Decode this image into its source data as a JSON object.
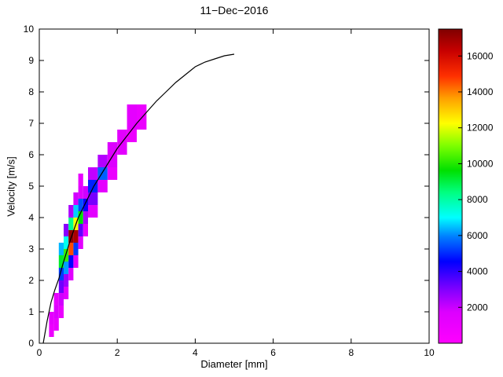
{
  "title": "11−Dec−2016",
  "chart_data": {
    "type": "heatmap",
    "title": "11−Dec−2016",
    "xlabel": "Diameter [mm]",
    "ylabel": "Velocity [m/s]",
    "xlim": [
      0,
      10
    ],
    "ylim": [
      0,
      10
    ],
    "xticks": [
      0,
      2,
      4,
      6,
      8,
      10
    ],
    "yticks": [
      0,
      1,
      2,
      3,
      4,
      5,
      6,
      7,
      8,
      9,
      10
    ],
    "grid": false,
    "background_color": "#ffffff",
    "axis_color": "#000000",
    "line_color": "#000000",
    "colorbar": {
      "min": 0,
      "max": 17500,
      "ticks": [
        2000,
        4000,
        6000,
        8000,
        10000,
        12000,
        14000,
        16000
      ],
      "position": "right"
    },
    "colormap": [
      [
        0.0,
        "#ff00ff"
      ],
      [
        0.1,
        "#dc00ff"
      ],
      [
        0.17,
        "#8200ff"
      ],
      [
        0.26,
        "#0000ff"
      ],
      [
        0.34,
        "#0080ff"
      ],
      [
        0.4,
        "#00ffff"
      ],
      [
        0.48,
        "#00ff80"
      ],
      [
        0.55,
        "#00e000"
      ],
      [
        0.63,
        "#80ff00"
      ],
      [
        0.7,
        "#ffff00"
      ],
      [
        0.78,
        "#ffa000"
      ],
      [
        0.85,
        "#ff3000"
      ],
      [
        0.93,
        "#c80000"
      ],
      [
        1.0,
        "#7f0000"
      ]
    ],
    "cells": [
      [
        0.25,
        0.375,
        0.2,
        0.6,
        900
      ],
      [
        0.25,
        0.375,
        0.6,
        1.0,
        1300
      ],
      [
        0.375,
        0.5,
        0.4,
        0.8,
        1100
      ],
      [
        0.375,
        0.5,
        0.8,
        1.2,
        1700
      ],
      [
        0.375,
        0.5,
        1.2,
        1.6,
        1200
      ],
      [
        0.5,
        0.625,
        0.8,
        1.2,
        1000
      ],
      [
        0.5,
        0.625,
        1.2,
        1.6,
        1900
      ],
      [
        0.5,
        0.625,
        1.6,
        2.0,
        3200
      ],
      [
        0.5,
        0.625,
        2.0,
        2.4,
        5200
      ],
      [
        0.5,
        0.625,
        2.4,
        2.8,
        9200
      ],
      [
        0.5,
        0.625,
        2.8,
        3.2,
        6400
      ],
      [
        0.625,
        0.75,
        1.4,
        1.8,
        1400
      ],
      [
        0.625,
        0.75,
        1.8,
        2.2,
        2600
      ],
      [
        0.625,
        0.75,
        2.2,
        2.6,
        6200
      ],
      [
        0.625,
        0.75,
        2.6,
        3.0,
        10200
      ],
      [
        0.625,
        0.75,
        3.0,
        3.4,
        7200
      ],
      [
        0.625,
        0.75,
        3.4,
        3.8,
        2900
      ],
      [
        0.75,
        0.875,
        2.0,
        2.4,
        1500
      ],
      [
        0.75,
        0.875,
        2.4,
        2.8,
        4600
      ],
      [
        0.75,
        0.875,
        2.8,
        3.2,
        14600
      ],
      [
        0.75,
        0.875,
        3.2,
        3.6,
        17200
      ],
      [
        0.75,
        0.875,
        3.6,
        4.0,
        8200
      ],
      [
        0.75,
        0.875,
        4.0,
        4.4,
        2400
      ],
      [
        0.875,
        1.0,
        2.4,
        2.8,
        1300
      ],
      [
        0.875,
        1.0,
        2.8,
        3.2,
        5200
      ],
      [
        0.875,
        1.0,
        3.2,
        3.6,
        16800
      ],
      [
        0.875,
        1.0,
        3.6,
        4.0,
        12200
      ],
      [
        0.875,
        1.0,
        4.0,
        4.4,
        6600
      ],
      [
        0.875,
        1.0,
        4.4,
        4.8,
        1900
      ],
      [
        1.0,
        1.125,
        3.0,
        3.4,
        1400
      ],
      [
        1.0,
        1.125,
        3.4,
        3.8,
        3400
      ],
      [
        1.0,
        1.125,
        3.8,
        4.2,
        9600
      ],
      [
        1.0,
        1.125,
        4.2,
        4.6,
        5400
      ],
      [
        1.0,
        1.125,
        4.6,
        5.0,
        1600
      ],
      [
        1.0,
        1.125,
        5.0,
        5.4,
        1100
      ],
      [
        1.125,
        1.25,
        3.4,
        3.8,
        1000
      ],
      [
        1.125,
        1.25,
        3.8,
        4.2,
        2400
      ],
      [
        1.125,
        1.25,
        4.2,
        4.6,
        4400
      ],
      [
        1.125,
        1.25,
        4.6,
        5.0,
        1900
      ],
      [
        1.25,
        1.5,
        4.0,
        4.4,
        1400
      ],
      [
        1.25,
        1.5,
        4.4,
        4.8,
        3100
      ],
      [
        1.25,
        1.5,
        4.8,
        5.2,
        4900
      ],
      [
        1.25,
        1.5,
        5.2,
        5.6,
        2100
      ],
      [
        1.5,
        1.75,
        4.8,
        5.2,
        1300
      ],
      [
        1.5,
        1.75,
        5.2,
        5.6,
        5600
      ],
      [
        1.5,
        1.75,
        5.6,
        6.0,
        2300
      ],
      [
        1.75,
        2.0,
        5.2,
        5.6,
        1000
      ],
      [
        1.75,
        2.0,
        5.6,
        6.4,
        1700
      ],
      [
        2.0,
        2.25,
        6.0,
        6.8,
        1400
      ],
      [
        2.25,
        2.5,
        6.4,
        6.8,
        900
      ],
      [
        2.25,
        2.5,
        6.8,
        7.6,
        1300
      ],
      [
        2.5,
        2.75,
        6.8,
        7.6,
        1000
      ]
    ],
    "line": {
      "name": "terminal-velocity-curve",
      "points": [
        [
          0.1,
          0.0
        ],
        [
          0.2,
          0.7
        ],
        [
          0.3,
          1.3
        ],
        [
          0.4,
          1.7
        ],
        [
          0.5,
          2.05
        ],
        [
          0.6,
          2.5
        ],
        [
          0.7,
          2.9
        ],
        [
          0.8,
          3.3
        ],
        [
          0.9,
          3.65
        ],
        [
          1.0,
          4.0
        ],
        [
          1.2,
          4.5
        ],
        [
          1.4,
          5.0
        ],
        [
          1.6,
          5.4
        ],
        [
          1.8,
          5.8
        ],
        [
          2.0,
          6.2
        ],
        [
          2.25,
          6.6
        ],
        [
          2.5,
          7.0
        ],
        [
          2.75,
          7.35
        ],
        [
          3.0,
          7.7
        ],
        [
          3.25,
          8.0
        ],
        [
          3.5,
          8.3
        ],
        [
          3.75,
          8.55
        ],
        [
          4.0,
          8.8
        ],
        [
          4.25,
          8.95
        ],
        [
          4.5,
          9.05
        ],
        [
          4.75,
          9.15
        ],
        [
          5.0,
          9.2
        ]
      ]
    }
  }
}
